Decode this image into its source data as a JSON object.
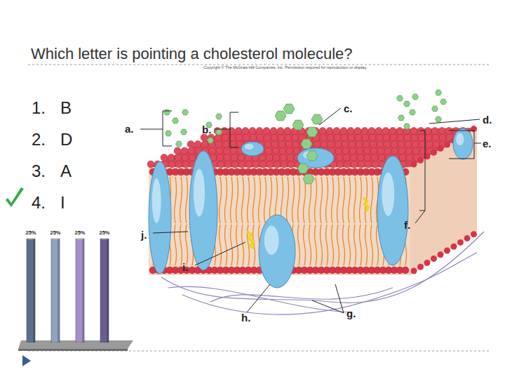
{
  "slide": {
    "title": "Which letter is pointing a cholesterol molecule?",
    "copyright": "Copyright © The McGraw-Hill Companies, Inc. Permission required for reproduction or display.",
    "options": [
      {
        "number": "1.",
        "text": "B",
        "correct": false
      },
      {
        "number": "2.",
        "text": "D",
        "correct": false
      },
      {
        "number": "3.",
        "text": "A",
        "correct": false
      },
      {
        "number": "4.",
        "text": "I",
        "correct": true
      }
    ]
  },
  "diagram": {
    "labels": [
      "a.",
      "b.",
      "c.",
      "d.",
      "e.",
      "f.",
      "g.",
      "h.",
      "i.",
      "j."
    ]
  },
  "chart_data": {
    "type": "bar",
    "categories": [
      null,
      null,
      null,
      null
    ],
    "values": [
      25,
      25,
      25,
      25
    ],
    "value_labels": [
      "25%",
      "25%",
      "25%",
      "25%"
    ],
    "colors": [
      "#5b6f92",
      "#8fa3bf",
      "#a58fcc",
      "#6b5d91"
    ],
    "ylim": [
      0,
      25
    ],
    "tick_labels": false,
    "data_labels": true
  }
}
